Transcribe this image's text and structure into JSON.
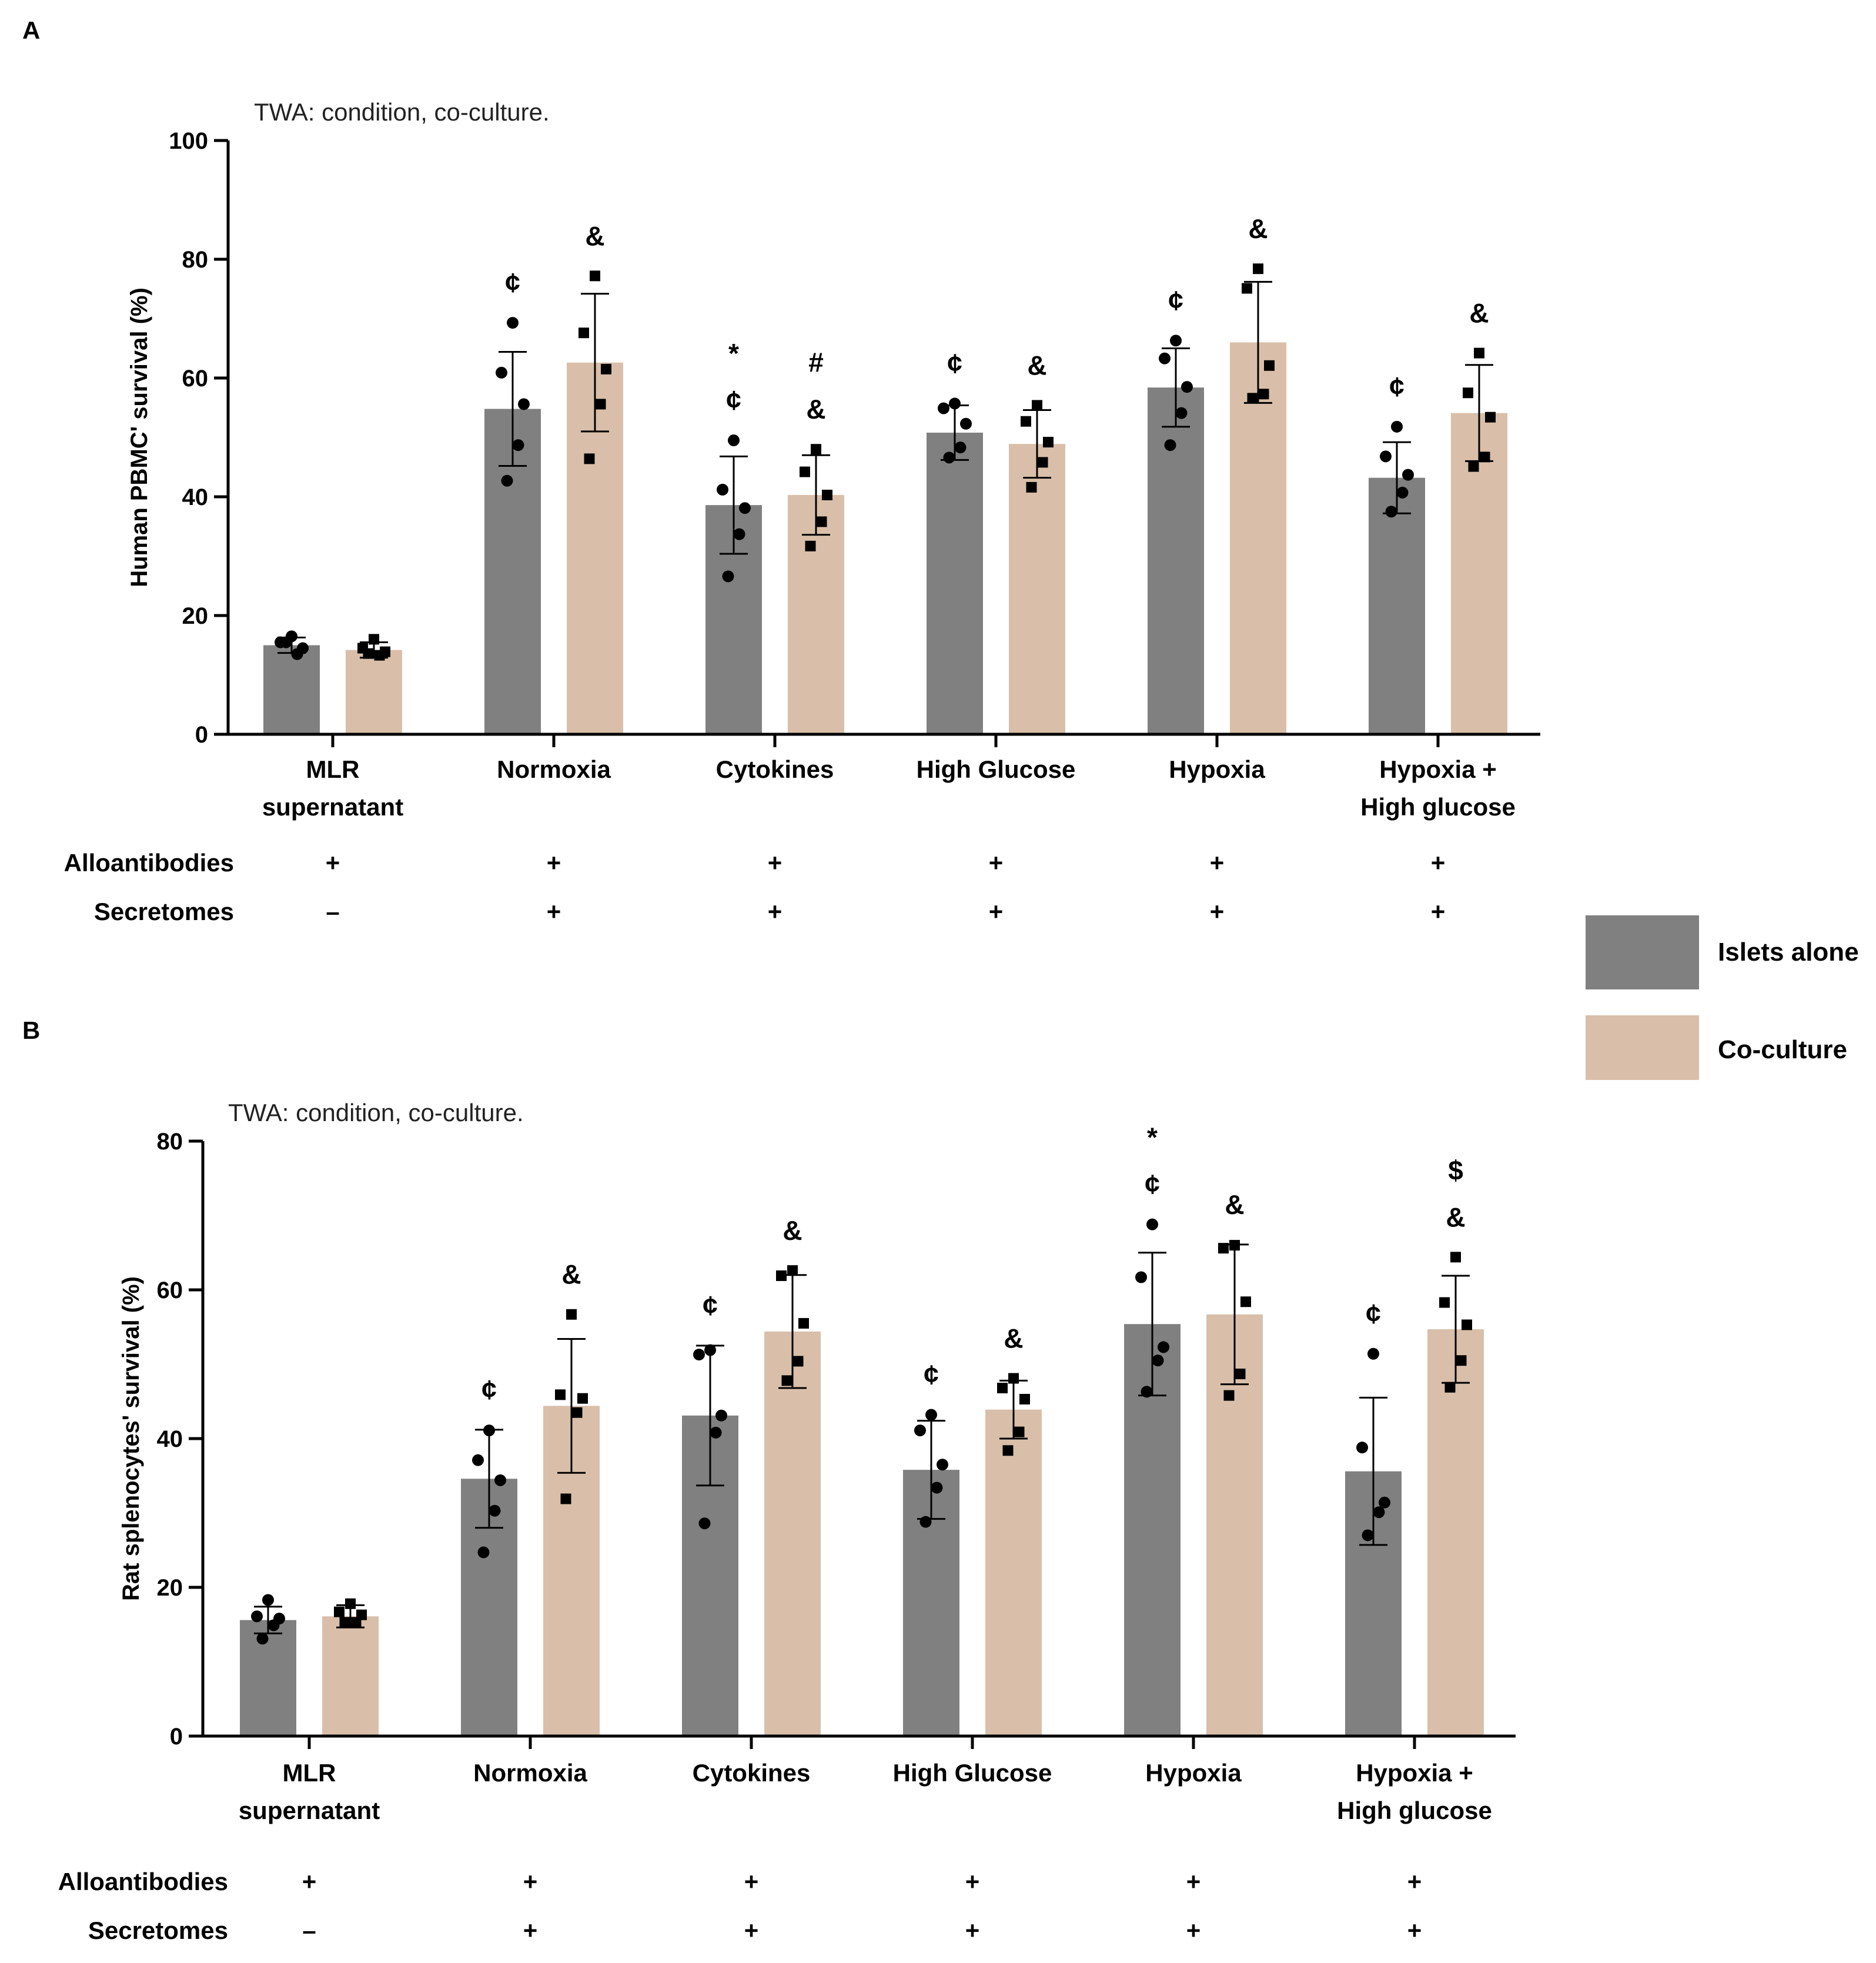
{
  "legend": [
    {
      "label": "Islets alone",
      "color": "#808080"
    },
    {
      "label": "Co-culture",
      "color": "#d9bfa9"
    }
  ],
  "chart_data": [
    {
      "panel": "A",
      "type": "bar",
      "note": "TWA: condition, co-culture.",
      "ylabel": "Human PBMC' survival (%)",
      "ylim": [
        0,
        100
      ],
      "yticks": [
        0,
        20,
        40,
        60,
        80,
        100
      ],
      "categories": [
        [
          "MLR",
          "supernatant"
        ],
        [
          "Normoxia"
        ],
        [
          "Cytokines"
        ],
        [
          "High Glucose"
        ],
        [
          "Hypoxia"
        ],
        [
          "Hypoxia +",
          "High glucose"
        ]
      ],
      "row_labels": [
        "Alloantibodies",
        "Secretomes"
      ],
      "rows": [
        [
          "+",
          "+",
          "+",
          "+",
          "+",
          "+"
        ],
        [
          "–",
          "+",
          "+",
          "+",
          "+",
          "+"
        ]
      ],
      "series": [
        {
          "name": "Islets alone",
          "values": [
            15.0,
            54.8,
            38.6,
            50.8,
            58.4,
            43.2
          ],
          "sd": [
            1.3,
            9.6,
            8.2,
            4.6,
            6.6,
            6.0
          ],
          "points": [
            [
              16.5,
              15.5,
              14.5,
              13.5,
              15.5
            ],
            [
              69.3,
              60.9,
              55.6,
              48.7,
              42.7
            ],
            [
              49.5,
              41.2,
              38.1,
              33.7,
              26.6
            ],
            [
              55.7,
              54.9,
              52.3,
              48.3,
              46.6
            ],
            [
              66.3,
              63.3,
              58.5,
              54.1,
              48.7
            ],
            [
              51.8,
              46.8,
              43.7,
              40.7,
              37.5
            ]
          ],
          "annotations": [
            [],
            [
              "¢"
            ],
            [
              "*",
              "¢"
            ],
            [
              "¢"
            ],
            [
              "¢"
            ],
            [
              "¢"
            ]
          ]
        },
        {
          "name": "Co-culture",
          "values": [
            14.2,
            62.6,
            40.3,
            48.9,
            66.0,
            54.1
          ],
          "sd": [
            1.3,
            11.6,
            6.7,
            5.7,
            10.2,
            8.1
          ],
          "points": [
            [
              16.0,
              14.5,
              13.9,
              13.3,
              13.6
            ],
            [
              77.2,
              67.6,
              61.5,
              55.6,
              46.4
            ],
            [
              48.0,
              44.2,
              40.3,
              35.8,
              31.7
            ],
            [
              55.4,
              52.7,
              49.2,
              45.8,
              41.6
            ],
            [
              78.4,
              75.1,
              62.1,
              57.3,
              56.6
            ],
            [
              64.2,
              57.5,
              53.4,
              46.7,
              45.1
            ]
          ],
          "annotations": [
            [],
            [
              "&"
            ],
            [
              "#",
              "&"
            ],
            [
              "&"
            ],
            [
              "&"
            ],
            [
              "&"
            ]
          ]
        }
      ]
    },
    {
      "panel": "B",
      "type": "bar",
      "note": "TWA: condition, co-culture.",
      "ylabel": "Rat splenocytes' survival (%)",
      "ylim": [
        0,
        80
      ],
      "yticks": [
        0,
        20,
        40,
        60,
        80
      ],
      "categories": [
        [
          "MLR",
          "supernatant"
        ],
        [
          "Normoxia"
        ],
        [
          "Cytokines"
        ],
        [
          "High Glucose"
        ],
        [
          "Hypoxia"
        ],
        [
          "Hypoxia +",
          "High glucose"
        ]
      ],
      "row_labels": [
        "Alloantibodies",
        "Secretomes"
      ],
      "rows": [
        [
          "+",
          "+",
          "+",
          "+",
          "+",
          "+"
        ],
        [
          "–",
          "+",
          "+",
          "+",
          "+",
          "+"
        ]
      ],
      "series": [
        {
          "name": "Islets alone",
          "values": [
            15.6,
            34.6,
            43.1,
            35.8,
            55.4,
            35.6
          ],
          "sd": [
            1.8,
            6.6,
            9.4,
            6.6,
            9.6,
            9.9
          ],
          "points": [
            [
              18.3,
              16.1,
              15.8,
              14.9,
              13.1
            ],
            [
              41.1,
              37.1,
              34.4,
              30.3,
              24.7
            ],
            [
              51.9,
              51.3,
              43.1,
              40.8,
              28.6
            ],
            [
              43.2,
              41.1,
              36.5,
              33.4,
              28.8
            ],
            [
              68.8,
              61.7,
              52.3,
              50.5,
              46.3
            ],
            [
              51.4,
              38.8,
              31.4,
              30.1,
              27.0
            ]
          ],
          "annotations": [
            [],
            [
              "¢"
            ],
            [
              "¢"
            ],
            [
              "¢"
            ],
            [
              "*",
              "¢"
            ],
            [
              "¢"
            ]
          ]
        },
        {
          "name": "Co-culture",
          "values": [
            16.1,
            44.4,
            54.4,
            43.9,
            56.7,
            54.7
          ],
          "sd": [
            1.5,
            9.0,
            7.6,
            3.9,
            9.4,
            7.2
          ],
          "points": [
            [
              17.8,
              16.7,
              16.3,
              15.3,
              15.3
            ],
            [
              56.7,
              45.9,
              45.4,
              43.5,
              31.9
            ],
            [
              62.6,
              61.9,
              55.5,
              50.4,
              47.8
            ],
            [
              48.1,
              46.8,
              45.3,
              40.9,
              38.4
            ],
            [
              66.0,
              65.6,
              58.4,
              48.7,
              45.8
            ],
            [
              64.4,
              58.3,
              55.3,
              50.5,
              46.9
            ]
          ],
          "annotations": [
            [],
            [
              "&"
            ],
            [
              "&"
            ],
            [
              "&"
            ],
            [
              "&"
            ],
            [
              "$",
              "&"
            ]
          ]
        }
      ]
    }
  ]
}
